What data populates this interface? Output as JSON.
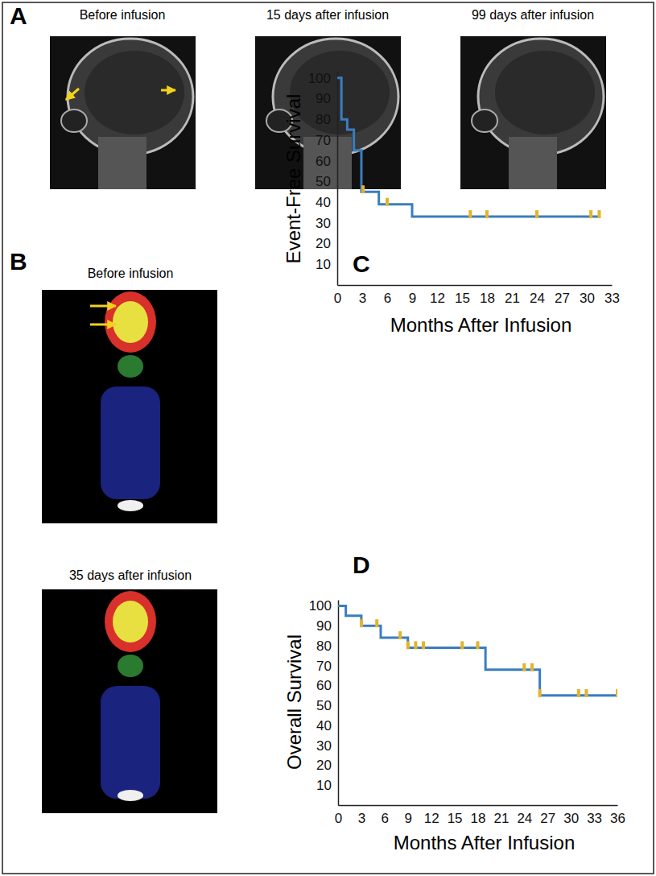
{
  "panels": [
    {
      "label": "A",
      "captions": [
        "Before infusion",
        "15 days after infusion",
        "99 days after infusion"
      ]
    },
    {
      "label": "B",
      "captions": [
        "Before infusion",
        "35 days after infusion"
      ]
    }
  ],
  "chart_data": [
    {
      "type": "line",
      "line_style": "step",
      "title": "C",
      "ylabel": "Event-Free Survival",
      "xlabel": "Months After Infusion",
      "x": [
        0,
        0.5,
        1.2,
        2.0,
        2.9,
        5.0,
        9.0,
        31.5
      ],
      "values": [
        100,
        80,
        75,
        65,
        45,
        39,
        33,
        33
      ],
      "color": "#3a7dc0",
      "censored": {
        "marker": "tick",
        "color": "#e2b42c",
        "x": [
          3.1,
          6,
          16,
          18,
          24,
          30.5,
          31.5
        ],
        "values": [
          45,
          39,
          33,
          33,
          33,
          33,
          33
        ]
      },
      "xlim": [
        0,
        33
      ],
      "xticks": [
        0,
        3,
        6,
        9,
        12,
        15,
        18,
        21,
        24,
        27,
        30,
        33
      ],
      "ylim": [
        0,
        103
      ],
      "yticks": [
        10,
        20,
        30,
        40,
        50,
        60,
        70,
        80,
        90,
        100
      ],
      "grid": false
    },
    {
      "type": "line",
      "line_style": "step",
      "title": "D",
      "ylabel": "Overall Survival",
      "xlabel": "Months After Infusion",
      "x": [
        0,
        1,
        3,
        5.5,
        9,
        19,
        26,
        36
      ],
      "values": [
        100,
        95,
        90,
        84,
        79,
        68,
        55,
        55
      ],
      "color": "#3a7dc0",
      "censored": {
        "marker": "tick",
        "color": "#e2b42c",
        "x": [
          3,
          5,
          8,
          9,
          10,
          11,
          16,
          18,
          24,
          25,
          26,
          31,
          32,
          36
        ],
        "values": [
          90,
          90,
          84,
          79,
          79,
          79,
          79,
          79,
          68,
          68,
          55,
          55,
          55,
          55
        ]
      },
      "xlim": [
        0,
        36
      ],
      "xticks": [
        0,
        3,
        6,
        9,
        12,
        15,
        18,
        21,
        24,
        27,
        30,
        33,
        36
      ],
      "ylim": [
        0,
        103
      ],
      "yticks": [
        10,
        20,
        30,
        40,
        50,
        60,
        70,
        80,
        90,
        100
      ],
      "grid": false
    }
  ]
}
